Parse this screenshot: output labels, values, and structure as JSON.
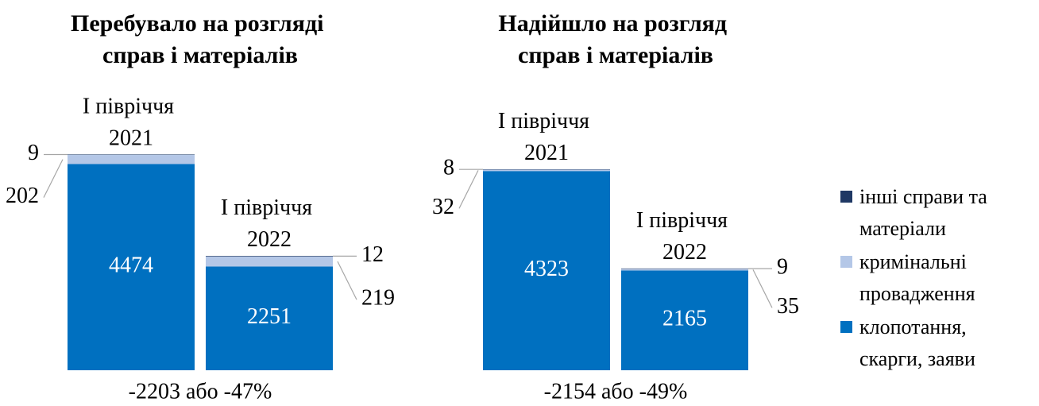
{
  "chart_data": [
    {
      "type": "bar",
      "stacked": true,
      "title": "Перебувало на розгляді справ і матеріалів",
      "categories": [
        "І півріччя 2021",
        "І півріччя 2022"
      ],
      "series": [
        {
          "name": "клопотання, скарги, заяви",
          "color": "#0070c0",
          "values": [
            4474,
            2251
          ]
        },
        {
          "name": "кримінальні провадження",
          "color": "#b4c7e7",
          "values": [
            202,
            219
          ]
        },
        {
          "name": "інші справи та матеріали",
          "color": "#1f3864",
          "values": [
            9,
            12
          ]
        }
      ],
      "ylim": [
        0,
        5000
      ],
      "annotation": "-2203 або -47%",
      "legend": "right"
    },
    {
      "type": "bar",
      "stacked": true,
      "title": "Надійшло на розгляд справ і матеріалів",
      "categories": [
        "І півріччя 2021",
        "І півріччя 2022"
      ],
      "series": [
        {
          "name": "клопотання, скарги, заяви",
          "color": "#0070c0",
          "values": [
            4323,
            2165
          ]
        },
        {
          "name": "кримінальні провадження",
          "color": "#b4c7e7",
          "values": [
            32,
            35
          ]
        },
        {
          "name": "інші справи та матеріали",
          "color": "#1f3864",
          "values": [
            8,
            9
          ]
        }
      ],
      "ylim": [
        0,
        5000
      ],
      "annotation": "-2154 або -49%"
    }
  ]
}
